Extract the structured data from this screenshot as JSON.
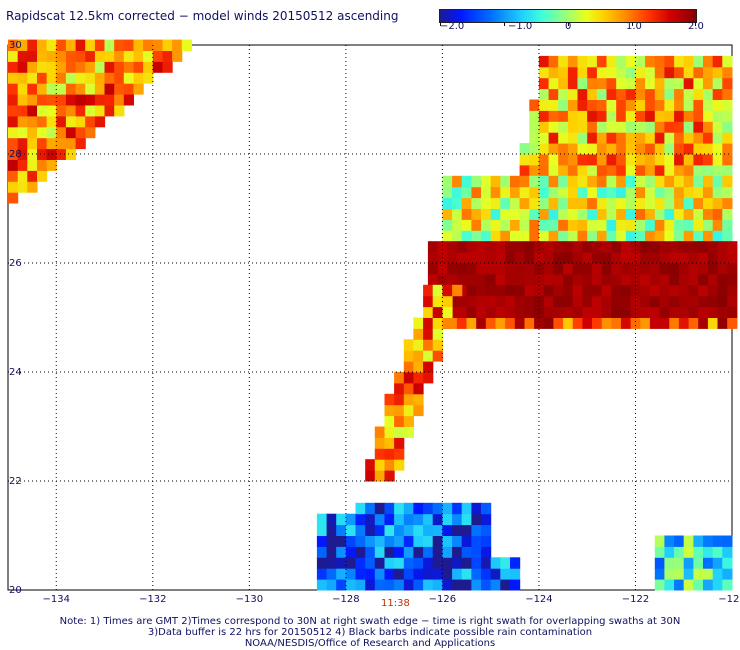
{
  "title": "Rapidscat 12.5km corrected − model winds 20150512 ascending",
  "colorbar": {
    "ticks": [
      "−2.0",
      "−1.0",
      "0",
      "1.0",
      "2.0"
    ],
    "values": [
      -2.0,
      -1.0,
      0,
      1.0,
      2.0
    ]
  },
  "time_label": "11:38",
  "notes": {
    "line1": "Note: 1) Times are GMT 2)Times correspond to 30N at right swath edge − time is right swath for overlapping swaths at 30N",
    "line2": "3)Data buffer is 22 hrs for 20150512 4) Black barbs indicate possible rain contamination",
    "line3": "NOAA/NESDIS/Office of Research and Applications"
  },
  "chart_data": {
    "type": "heatmap",
    "title": "Rapidscat 12.5km corrected − model winds 20150512 ascending",
    "xlabel": "",
    "ylabel": "",
    "xlim": [
      -135,
      -120
    ],
    "ylim": [
      20,
      30
    ],
    "x_ticks": [
      -134,
      -132,
      -130,
      -128,
      -126,
      -124,
      -122,
      -120
    ],
    "x_tick_labels": [
      "−134",
      "−132",
      "−130",
      "−128",
      "−126",
      "−124",
      "−122",
      "−120"
    ],
    "y_ticks": [
      20,
      22,
      24,
      26,
      28,
      30
    ],
    "y_tick_labels": [
      "20",
      "22",
      "24",
      "26",
      "28",
      "30"
    ],
    "grid": true,
    "color_range": [
      -2.0,
      2.0
    ],
    "regions": [
      {
        "name": "top-left corner",
        "lon_range": [
          -135,
          -131.3
        ],
        "lat_range": [
          27.1,
          30
        ],
        "mean_value": 0.9
      },
      {
        "name": "northeast swath upper",
        "lon_range": [
          -125,
          -120
        ],
        "lat_range": [
          27.6,
          29.8
        ],
        "mean_value": 0.7
      },
      {
        "name": "northeast swath middle band",
        "lon_range": [
          -126,
          -120
        ],
        "lat_range": [
          26.4,
          27.6
        ],
        "mean_value": 0.3
      },
      {
        "name": "northeast strong positive block",
        "lon_range": [
          -126.3,
          -120
        ],
        "lat_range": [
          24.8,
          26.4
        ],
        "mean_value": 2.0
      },
      {
        "name": "narrow diagonal strip",
        "lon_range": [
          -127.6,
          -125.6
        ],
        "lat_range": [
          22.0,
          25.6
        ],
        "mean_value": 0.9
      },
      {
        "name": "southern blob",
        "lon_range": [
          -128.6,
          -124.4
        ],
        "lat_range": [
          20.0,
          21.6
        ],
        "mean_value": -1.3
      },
      {
        "name": "southeast corner",
        "lon_range": [
          -121.6,
          -120
        ],
        "lat_range": [
          20.0,
          21.0
        ],
        "mean_value": -0.6
      }
    ]
  }
}
